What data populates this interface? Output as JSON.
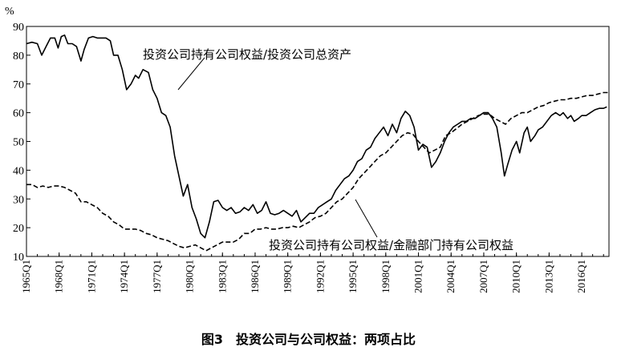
{
  "caption": "图3　投资公司与公司权益：两项占比",
  "chart_data": {
    "type": "line",
    "ylabel": "%",
    "ylim": [
      10,
      90
    ],
    "yticks": [
      10,
      20,
      30,
      40,
      50,
      60,
      70,
      80,
      90
    ],
    "xlim": [
      1965.0,
      2018.5
    ],
    "xticks": [
      "1965Q1",
      "1968Q1",
      "1971Q1",
      "1974Q1",
      "1977Q1",
      "1980Q1",
      "1983Q1",
      "1986Q1",
      "1989Q1",
      "1992Q1",
      "1995Q1",
      "1998Q1",
      "2001Q1",
      "2004Q1",
      "2007Q1",
      "2010Q1",
      "2013Q1",
      "2016Q1"
    ],
    "series": [
      {
        "name": "投资公司持有公司权益/投资公司总资产",
        "style": "solid",
        "points": [
          [
            1965.0,
            84
          ],
          [
            1965.5,
            84.5
          ],
          [
            1966.0,
            84
          ],
          [
            1966.4,
            80
          ],
          [
            1966.8,
            83
          ],
          [
            1967.2,
            86
          ],
          [
            1967.6,
            86
          ],
          [
            1967.9,
            82.5
          ],
          [
            1968.2,
            86.5
          ],
          [
            1968.5,
            87
          ],
          [
            1968.8,
            84
          ],
          [
            1969.2,
            84
          ],
          [
            1969.6,
            83
          ],
          [
            1970.0,
            78
          ],
          [
            1970.3,
            82
          ],
          [
            1970.7,
            86
          ],
          [
            1971.1,
            86.5
          ],
          [
            1971.5,
            86
          ],
          [
            1971.9,
            86
          ],
          [
            1972.3,
            86
          ],
          [
            1972.7,
            85
          ],
          [
            1973.0,
            80
          ],
          [
            1973.4,
            80
          ],
          [
            1973.8,
            75
          ],
          [
            1974.2,
            68
          ],
          [
            1974.6,
            70
          ],
          [
            1975.0,
            73
          ],
          [
            1975.3,
            72
          ],
          [
            1975.7,
            75
          ],
          [
            1976.2,
            74
          ],
          [
            1976.6,
            68
          ],
          [
            1977.0,
            65
          ],
          [
            1977.4,
            60
          ],
          [
            1977.8,
            59
          ],
          [
            1978.2,
            55
          ],
          [
            1978.6,
            45
          ],
          [
            1979.0,
            38
          ],
          [
            1979.4,
            31
          ],
          [
            1979.8,
            35
          ],
          [
            1980.2,
            27
          ],
          [
            1980.6,
            23
          ],
          [
            1981.0,
            18
          ],
          [
            1981.4,
            16.5
          ],
          [
            1981.8,
            22
          ],
          [
            1982.2,
            29
          ],
          [
            1982.6,
            29.5
          ],
          [
            1983.0,
            27
          ],
          [
            1983.4,
            26
          ],
          [
            1983.8,
            27
          ],
          [
            1984.2,
            25
          ],
          [
            1984.6,
            25.5
          ],
          [
            1985.0,
            27
          ],
          [
            1985.4,
            26
          ],
          [
            1985.8,
            28
          ],
          [
            1986.2,
            25
          ],
          [
            1986.6,
            26
          ],
          [
            1987.0,
            29
          ],
          [
            1987.4,
            25
          ],
          [
            1987.8,
            24.5
          ],
          [
            1988.2,
            25
          ],
          [
            1988.6,
            26
          ],
          [
            1989.0,
            25
          ],
          [
            1989.4,
            24
          ],
          [
            1989.8,
            26
          ],
          [
            1990.2,
            22
          ],
          [
            1990.6,
            23.5
          ],
          [
            1991.0,
            25
          ],
          [
            1991.4,
            25
          ],
          [
            1991.8,
            27
          ],
          [
            1992.2,
            28
          ],
          [
            1992.6,
            29
          ],
          [
            1993.0,
            30
          ],
          [
            1993.4,
            33
          ],
          [
            1993.8,
            35
          ],
          [
            1994.2,
            37
          ],
          [
            1994.6,
            38
          ],
          [
            1995.0,
            40
          ],
          [
            1995.4,
            43
          ],
          [
            1995.8,
            44
          ],
          [
            1996.2,
            47
          ],
          [
            1996.6,
            48
          ],
          [
            1997.0,
            51
          ],
          [
            1997.4,
            53
          ],
          [
            1997.8,
            55
          ],
          [
            1998.2,
            52
          ],
          [
            1998.6,
            56
          ],
          [
            1999.0,
            53
          ],
          [
            1999.4,
            58
          ],
          [
            1999.8,
            60.5
          ],
          [
            2000.2,
            59
          ],
          [
            2000.6,
            55
          ],
          [
            2001.0,
            47
          ],
          [
            2001.4,
            49
          ],
          [
            2001.8,
            48
          ],
          [
            2002.2,
            41
          ],
          [
            2002.6,
            43
          ],
          [
            2003.0,
            46
          ],
          [
            2003.4,
            50
          ],
          [
            2003.8,
            53
          ],
          [
            2004.2,
            55
          ],
          [
            2004.6,
            56
          ],
          [
            2005.0,
            57
          ],
          [
            2005.4,
            57
          ],
          [
            2005.8,
            58
          ],
          [
            2006.2,
            58
          ],
          [
            2006.6,
            59
          ],
          [
            2007.0,
            60
          ],
          [
            2007.4,
            60
          ],
          [
            2007.8,
            58
          ],
          [
            2008.2,
            55
          ],
          [
            2008.6,
            46
          ],
          [
            2008.9,
            38
          ],
          [
            2009.2,
            42
          ],
          [
            2009.6,
            47
          ],
          [
            2010.0,
            50
          ],
          [
            2010.3,
            46
          ],
          [
            2010.7,
            53
          ],
          [
            2011.0,
            55
          ],
          [
            2011.3,
            50
          ],
          [
            2011.7,
            52
          ],
          [
            2012.0,
            54
          ],
          [
            2012.4,
            55
          ],
          [
            2012.8,
            57
          ],
          [
            2013.2,
            59
          ],
          [
            2013.6,
            60
          ],
          [
            2014.0,
            59
          ],
          [
            2014.3,
            60
          ],
          [
            2014.7,
            58
          ],
          [
            2015.0,
            59
          ],
          [
            2015.3,
            57
          ],
          [
            2015.7,
            58
          ],
          [
            2016.0,
            59
          ],
          [
            2016.4,
            59
          ],
          [
            2016.8,
            60
          ],
          [
            2017.2,
            61
          ],
          [
            2017.6,
            61.5
          ],
          [
            2018.0,
            61.5
          ],
          [
            2018.3,
            62
          ]
        ]
      },
      {
        "name": "投资公司持有公司权益/金融部门持有公司权益",
        "style": "dashed",
        "points": [
          [
            1965.0,
            35
          ],
          [
            1965.5,
            35
          ],
          [
            1966.0,
            34
          ],
          [
            1966.5,
            34.5
          ],
          [
            1967.0,
            34
          ],
          [
            1967.5,
            34.5
          ],
          [
            1968.0,
            34.5
          ],
          [
            1968.5,
            34
          ],
          [
            1969.0,
            33
          ],
          [
            1969.5,
            32
          ],
          [
            1970.0,
            29
          ],
          [
            1970.5,
            29
          ],
          [
            1971.0,
            28
          ],
          [
            1971.5,
            27
          ],
          [
            1972.0,
            25
          ],
          [
            1972.5,
            24
          ],
          [
            1973.0,
            22
          ],
          [
            1973.5,
            21
          ],
          [
            1974.0,
            19.5
          ],
          [
            1974.5,
            19.5
          ],
          [
            1975.0,
            19.5
          ],
          [
            1975.5,
            19
          ],
          [
            1976.0,
            18
          ],
          [
            1976.5,
            17.5
          ],
          [
            1977.0,
            16.5
          ],
          [
            1977.5,
            16
          ],
          [
            1978.0,
            15.5
          ],
          [
            1978.5,
            14.5
          ],
          [
            1979.0,
            13.5
          ],
          [
            1979.5,
            13
          ],
          [
            1980.0,
            13.5
          ],
          [
            1980.5,
            14
          ],
          [
            1981.0,
            13
          ],
          [
            1981.5,
            12
          ],
          [
            1982.0,
            13
          ],
          [
            1982.5,
            14
          ],
          [
            1983.0,
            15
          ],
          [
            1983.5,
            15
          ],
          [
            1984.0,
            15
          ],
          [
            1984.5,
            16
          ],
          [
            1985.0,
            18
          ],
          [
            1985.5,
            18
          ],
          [
            1986.0,
            19.5
          ],
          [
            1986.5,
            19.5
          ],
          [
            1987.0,
            20
          ],
          [
            1987.5,
            19.5
          ],
          [
            1988.0,
            19.5
          ],
          [
            1988.5,
            20
          ],
          [
            1989.0,
            20
          ],
          [
            1989.5,
            20.5
          ],
          [
            1990.0,
            20
          ],
          [
            1990.5,
            21
          ],
          [
            1991.0,
            22
          ],
          [
            1991.5,
            23.5
          ],
          [
            1992.0,
            24
          ],
          [
            1992.5,
            25
          ],
          [
            1993.0,
            27
          ],
          [
            1993.5,
            29
          ],
          [
            1994.0,
            30
          ],
          [
            1994.5,
            32
          ],
          [
            1995.0,
            34
          ],
          [
            1995.5,
            37
          ],
          [
            1996.0,
            39
          ],
          [
            1996.5,
            41
          ],
          [
            1997.0,
            43
          ],
          [
            1997.5,
            45
          ],
          [
            1998.0,
            46
          ],
          [
            1998.5,
            48
          ],
          [
            1999.0,
            50
          ],
          [
            1999.5,
            52
          ],
          [
            2000.0,
            53
          ],
          [
            2000.5,
            52.5
          ],
          [
            2001.0,
            50
          ],
          [
            2001.5,
            48
          ],
          [
            2002.0,
            46
          ],
          [
            2002.5,
            47
          ],
          [
            2003.0,
            48
          ],
          [
            2003.5,
            52
          ],
          [
            2004.0,
            53
          ],
          [
            2004.5,
            54.5
          ],
          [
            2005.0,
            56
          ],
          [
            2005.5,
            57
          ],
          [
            2006.0,
            58
          ],
          [
            2006.5,
            59
          ],
          [
            2007.0,
            59.5
          ],
          [
            2007.5,
            59.5
          ],
          [
            2008.0,
            58
          ],
          [
            2008.5,
            57
          ],
          [
            2009.0,
            56
          ],
          [
            2009.5,
            58
          ],
          [
            2010.0,
            59
          ],
          [
            2010.5,
            60
          ],
          [
            2011.0,
            60
          ],
          [
            2011.5,
            61
          ],
          [
            2012.0,
            62
          ],
          [
            2012.5,
            62.5
          ],
          [
            2013.0,
            63.5
          ],
          [
            2013.5,
            64
          ],
          [
            2014.0,
            64.5
          ],
          [
            2014.5,
            64.5
          ],
          [
            2015.0,
            65
          ],
          [
            2015.5,
            65
          ],
          [
            2016.0,
            65.5
          ],
          [
            2016.5,
            66
          ],
          [
            2017.0,
            66
          ],
          [
            2017.5,
            66.5
          ],
          [
            2018.0,
            67
          ],
          [
            2018.5,
            67
          ]
        ]
      }
    ]
  }
}
